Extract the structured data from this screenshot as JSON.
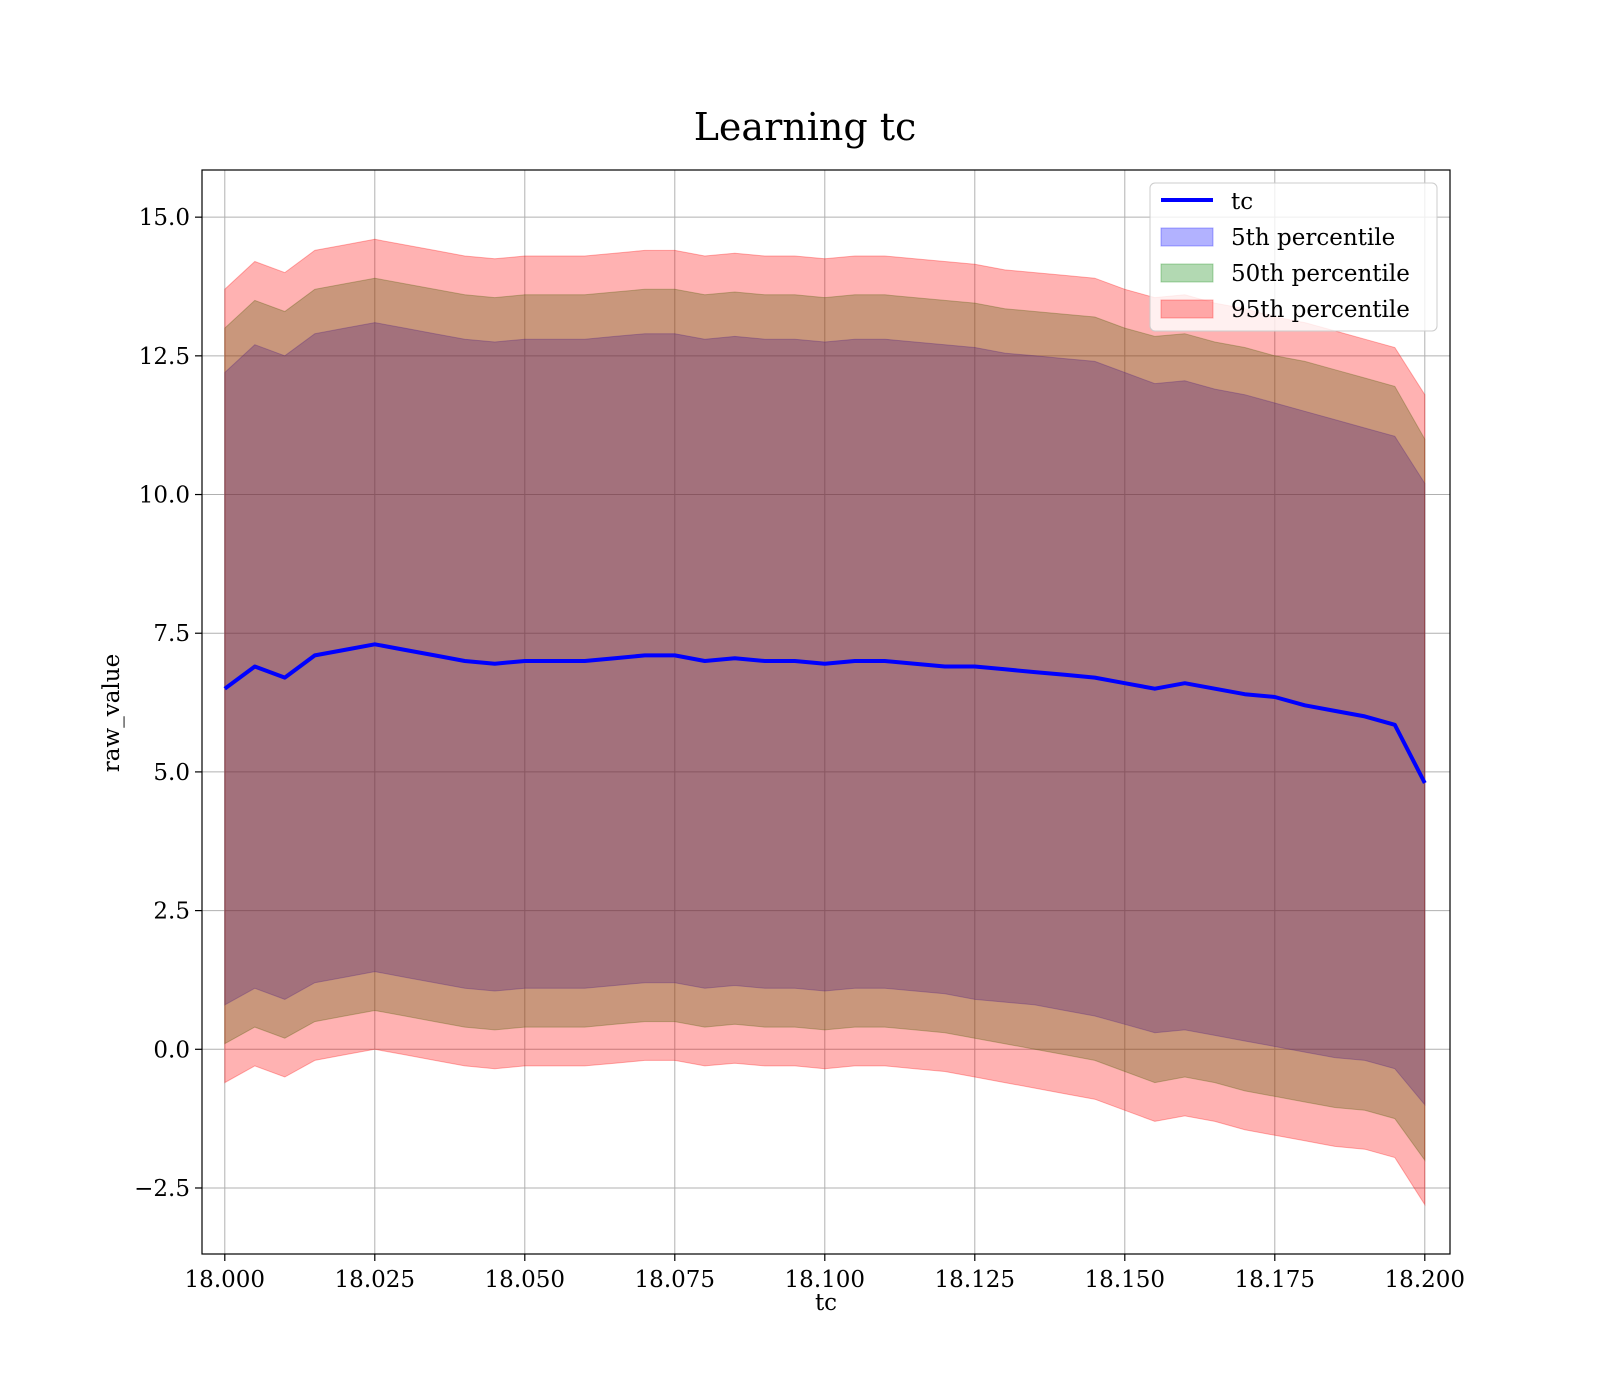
{
  "chart_data": {
    "type": "area",
    "title": "Learning tc",
    "xlabel": "tc",
    "ylabel": "raw_value",
    "xlim": [
      17.9962,
      18.2042
    ],
    "ylim": [
      -3.69,
      15.85
    ],
    "xticks": [
      18.0,
      18.025,
      18.05,
      18.075,
      18.1,
      18.125,
      18.15,
      18.175,
      18.2
    ],
    "xtick_labels": [
      "18.000",
      "18.025",
      "18.050",
      "18.075",
      "18.100",
      "18.125",
      "18.150",
      "18.175",
      "18.200"
    ],
    "yticks": [
      -2.5,
      0.0,
      2.5,
      5.0,
      7.5,
      10.0,
      12.5,
      15.0
    ],
    "ytick_labels": [
      "−2.5",
      "0.0",
      "2.5",
      "5.0",
      "7.5",
      "10.0",
      "12.5",
      "15.0"
    ],
    "grid": true,
    "legend_position": "top-right",
    "x": [
      18.0,
      18.005,
      18.01,
      18.015,
      18.02,
      18.025,
      18.03,
      18.035,
      18.04,
      18.045,
      18.05,
      18.055,
      18.06,
      18.065,
      18.07,
      18.075,
      18.08,
      18.085,
      18.09,
      18.095,
      18.1,
      18.105,
      18.11,
      18.115,
      18.12,
      18.125,
      18.13,
      18.135,
      18.14,
      18.145,
      18.15,
      18.155,
      18.16,
      18.165,
      18.17,
      18.175,
      18.18,
      18.185,
      18.19,
      18.195,
      18.2
    ],
    "series": [
      {
        "name": "tc",
        "kind": "line",
        "color": "#0000ff",
        "values": [
          6.5,
          6.9,
          6.7,
          7.1,
          7.2,
          7.3,
          7.2,
          7.1,
          7.0,
          6.95,
          7.0,
          7.0,
          7.0,
          7.05,
          7.1,
          7.1,
          7.0,
          7.05,
          7.0,
          7.0,
          6.95,
          7.0,
          7.0,
          6.95,
          6.9,
          6.9,
          6.85,
          6.8,
          6.75,
          6.7,
          6.6,
          6.5,
          6.6,
          6.5,
          6.4,
          6.35,
          6.2,
          6.1,
          6.0,
          5.85,
          4.8
        ]
      },
      {
        "name": "5th percentile",
        "kind": "band",
        "color": "#0000ff",
        "alpha": 0.3,
        "lower": [
          0.8,
          1.1,
          0.9,
          1.2,
          1.3,
          1.4,
          1.3,
          1.2,
          1.1,
          1.05,
          1.1,
          1.1,
          1.1,
          1.15,
          1.2,
          1.2,
          1.1,
          1.15,
          1.1,
          1.1,
          1.05,
          1.1,
          1.1,
          1.05,
          1.0,
          0.9,
          0.85,
          0.8,
          0.7,
          0.6,
          0.45,
          0.3,
          0.35,
          0.25,
          0.15,
          0.05,
          -0.05,
          -0.15,
          -0.2,
          -0.35,
          -1.0
        ],
        "upper": [
          12.2,
          12.7,
          12.5,
          12.9,
          13.0,
          13.1,
          13.0,
          12.9,
          12.8,
          12.75,
          12.8,
          12.8,
          12.8,
          12.85,
          12.9,
          12.9,
          12.8,
          12.85,
          12.8,
          12.8,
          12.75,
          12.8,
          12.8,
          12.75,
          12.7,
          12.65,
          12.55,
          12.5,
          12.45,
          12.4,
          12.2,
          12.0,
          12.05,
          11.9,
          11.8,
          11.65,
          11.5,
          11.35,
          11.2,
          11.05,
          10.2
        ]
      },
      {
        "name": "50th percentile",
        "kind": "band",
        "color": "#008000",
        "alpha": 0.3,
        "lower": [
          0.1,
          0.4,
          0.2,
          0.5,
          0.6,
          0.7,
          0.6,
          0.5,
          0.4,
          0.35,
          0.4,
          0.4,
          0.4,
          0.45,
          0.5,
          0.5,
          0.4,
          0.45,
          0.4,
          0.4,
          0.35,
          0.4,
          0.4,
          0.35,
          0.3,
          0.2,
          0.1,
          0.0,
          -0.1,
          -0.2,
          -0.4,
          -0.6,
          -0.5,
          -0.6,
          -0.75,
          -0.85,
          -0.95,
          -1.05,
          -1.1,
          -1.25,
          -2.0
        ],
        "upper": [
          13.0,
          13.5,
          13.3,
          13.7,
          13.8,
          13.9,
          13.8,
          13.7,
          13.6,
          13.55,
          13.6,
          13.6,
          13.6,
          13.65,
          13.7,
          13.7,
          13.6,
          13.65,
          13.6,
          13.6,
          13.55,
          13.6,
          13.6,
          13.55,
          13.5,
          13.45,
          13.35,
          13.3,
          13.25,
          13.2,
          13.0,
          12.85,
          12.9,
          12.75,
          12.65,
          12.5,
          12.4,
          12.25,
          12.1,
          11.95,
          11.0
        ]
      },
      {
        "name": "95th percentile",
        "kind": "band",
        "color": "#ff0000",
        "alpha": 0.3,
        "lower": [
          -0.6,
          -0.3,
          -0.5,
          -0.2,
          -0.1,
          0.0,
          -0.1,
          -0.2,
          -0.3,
          -0.35,
          -0.3,
          -0.3,
          -0.3,
          -0.25,
          -0.2,
          -0.2,
          -0.3,
          -0.25,
          -0.3,
          -0.3,
          -0.35,
          -0.3,
          -0.3,
          -0.35,
          -0.4,
          -0.5,
          -0.6,
          -0.7,
          -0.8,
          -0.9,
          -1.1,
          -1.3,
          -1.2,
          -1.3,
          -1.45,
          -1.55,
          -1.65,
          -1.75,
          -1.8,
          -1.95,
          -2.8
        ],
        "upper": [
          13.7,
          14.2,
          14.0,
          14.4,
          14.5,
          14.6,
          14.5,
          14.4,
          14.3,
          14.25,
          14.3,
          14.3,
          14.3,
          14.35,
          14.4,
          14.4,
          14.3,
          14.35,
          14.3,
          14.3,
          14.25,
          14.3,
          14.3,
          14.25,
          14.2,
          14.15,
          14.05,
          14.0,
          13.95,
          13.9,
          13.7,
          13.55,
          13.6,
          13.45,
          13.35,
          13.2,
          13.1,
          12.95,
          12.8,
          12.65,
          11.8
        ]
      }
    ]
  }
}
